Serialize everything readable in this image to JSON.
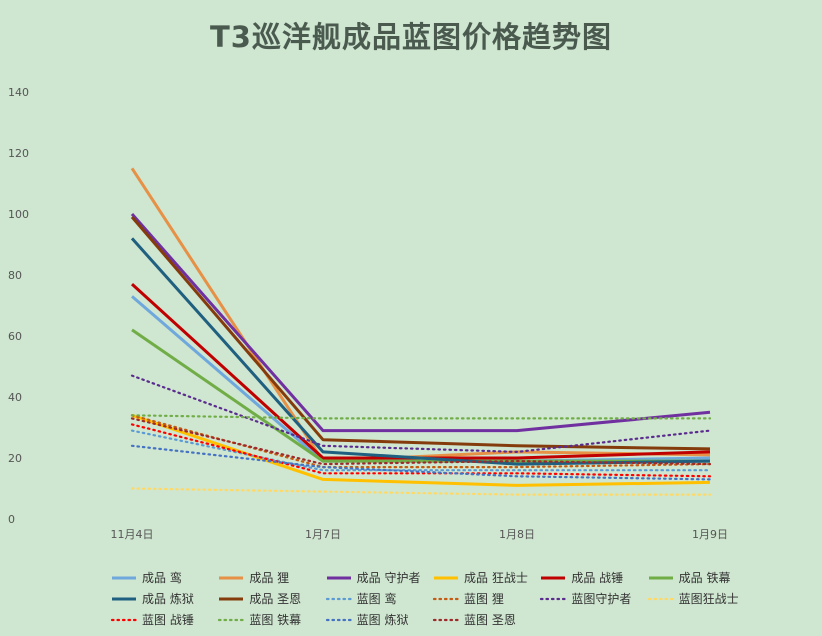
{
  "chart_data": {
    "type": "line",
    "title": "T3巡洋舰成品蓝图价格趋势图",
    "categories": [
      "11月4日",
      "1月7日",
      "1月8日",
      "1月9日"
    ],
    "ylim": [
      0,
      140
    ],
    "yticks": [
      0,
      20,
      40,
      60,
      80,
      100,
      120,
      140
    ],
    "grid": false,
    "legend_position": "bottom",
    "series": [
      {
        "name": "成品 鸾",
        "values": [
          73,
          19,
          19,
          20
        ],
        "color": "#6fa8dc",
        "dash": "solid"
      },
      {
        "name": "成品 狸",
        "values": [
          115,
          19,
          22,
          21
        ],
        "color": "#e69146",
        "dash": "solid"
      },
      {
        "name": "成品 守护者",
        "values": [
          100,
          29,
          29,
          35
        ],
        "color": "#7030a0",
        "dash": "solid"
      },
      {
        "name": "成品 狂战士",
        "values": [
          34,
          13,
          11,
          12
        ],
        "color": "#ffc000",
        "dash": "solid"
      },
      {
        "name": "成品 战锤",
        "values": [
          77,
          20,
          20,
          22
        ],
        "color": "#c00000",
        "dash": "solid"
      },
      {
        "name": "成品 铁幕",
        "values": [
          62,
          19,
          19,
          19
        ],
        "color": "#70ad47",
        "dash": "solid"
      },
      {
        "name": "成品 炼狱",
        "values": [
          92,
          22,
          18,
          19
        ],
        "color": "#1f5f7f",
        "dash": "solid"
      },
      {
        "name": "成品 圣恩",
        "values": [
          99,
          26,
          24,
          23
        ],
        "color": "#843c0c",
        "dash": "solid"
      },
      {
        "name": "蓝图 鸾",
        "values": [
          29,
          16,
          16,
          16
        ],
        "color": "#5b9bd5",
        "dash": "dot"
      },
      {
        "name": "蓝图 狸",
        "values": [
          34,
          17,
          17,
          18
        ],
        "color": "#c55a11",
        "dash": "dot"
      },
      {
        "name": "蓝图守护者",
        "values": [
          47,
          24,
          22,
          29
        ],
        "color": "#5b2c8f",
        "dash": "dot"
      },
      {
        "name": "蓝图狂战士",
        "values": [
          10,
          9,
          8,
          8
        ],
        "color": "#ffd966",
        "dash": "dot"
      },
      {
        "name": "蓝图 战锤",
        "values": [
          31,
          15,
          15,
          14
        ],
        "color": "#ff0000",
        "dash": "dot"
      },
      {
        "name": "蓝图 铁幕",
        "values": [
          34,
          33,
          33,
          33
        ],
        "color": "#70ad47",
        "dash": "dot"
      },
      {
        "name": "蓝图 炼狱",
        "values": [
          24,
          17,
          14,
          13
        ],
        "color": "#4472c4",
        "dash": "dot"
      },
      {
        "name": "蓝图 圣恩",
        "values": [
          33,
          18,
          19,
          18
        ],
        "color": "#9e2a2b",
        "dash": "dot"
      }
    ]
  }
}
